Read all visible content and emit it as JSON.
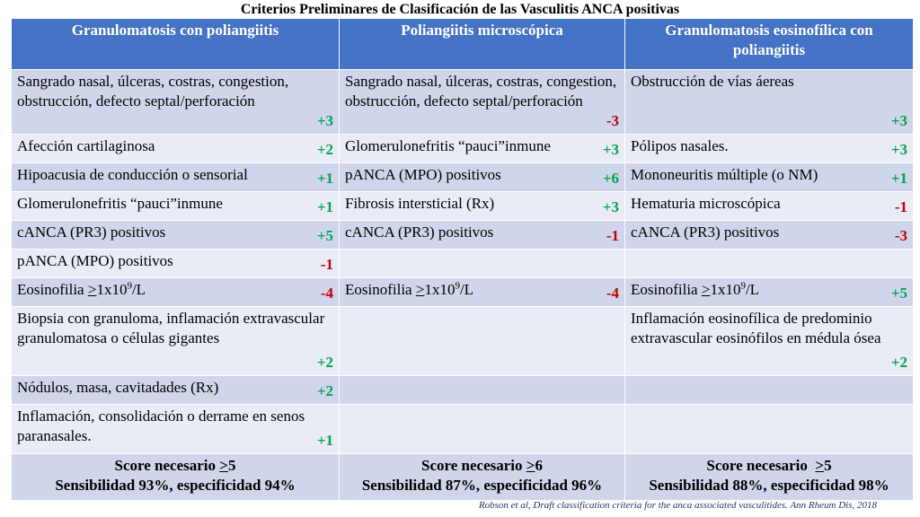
{
  "title": "Criterios Preliminares de Clasificación de las Vasculitis ANCA positivas",
  "headers": [
    "Granulomatosis con poliangiitis",
    "Poliangiitis microscópica",
    "Granulomatosis eosinofílica con poliangiitis"
  ],
  "rows": [
    [
      {
        "text": "Sangrado nasal, úlceras, costras, congestion, obstrucción, defecto septal/perforación",
        "score": "+3"
      },
      {
        "text": "Sangrado nasal, úlceras, costras, congestion, obstrucción, defecto septal/perforación",
        "score": "-3"
      },
      {
        "text": "Obstrucción de vías áereas",
        "score": "+3"
      }
    ],
    [
      {
        "text": "Afección cartilaginosa",
        "score": "+2"
      },
      {
        "text": "Glomerulonefritis “pauci”inmune",
        "score": "+3"
      },
      {
        "text": "Pólipos nasales.",
        "score": "+3"
      }
    ],
    [
      {
        "text": "Hipoacusia de conducción o sensorial",
        "score": "+1"
      },
      {
        "text": "pANCA (MPO) positivos",
        "score": "+6"
      },
      {
        "text": "Mononeuritis múltiple (o NM)",
        "score": "+1"
      }
    ],
    [
      {
        "text": "Glomerulonefritis “pauci”inmune",
        "score": "+1"
      },
      {
        "text": "Fibrosis intersticial (Rx)",
        "score": "+3"
      },
      {
        "text": "Hematuria microscópica",
        "score": "-1"
      }
    ],
    [
      {
        "text": "cANCA (PR3) positivos",
        "score": "+5"
      },
      {
        "text": "cANCA (PR3) positivos",
        "score": "-1"
      },
      {
        "text": "cANCA (PR3) positivos",
        "score": "-3"
      }
    ],
    [
      {
        "text": "pANCA (MPO) positivos",
        "score": "-1"
      },
      {
        "text": "",
        "score": ""
      },
      {
        "text": "",
        "score": ""
      }
    ],
    [
      {
        "pre": "Eosinofilia ",
        "ul": ">",
        "mid": "1x10",
        "sup": "9",
        "post": "/L",
        "score": "-4"
      },
      {
        "pre": "Eosinofilia ",
        "ul": ">",
        "mid": "1x10",
        "sup": "9",
        "post": "/L",
        "score": "-4"
      },
      {
        "pre": "Eosinofilia ",
        "ul": ">",
        "mid": "1x10",
        "sup": "9",
        "post": "/L",
        "score": "+5"
      }
    ],
    [
      {
        "text": "Biopsia con granuloma, inflamación extravascular granulomatosa o células gigantes",
        "score": "+2"
      },
      {
        "text": "",
        "score": ""
      },
      {
        "text": "Inflamación eosinofílica de predominio extravascular eosinófilos en médula ósea",
        "score": "+2"
      }
    ],
    [
      {
        "text": "Nódulos, masa, cavitadades (Rx)",
        "score": "+2"
      },
      {
        "text": "",
        "score": ""
      },
      {
        "text": "",
        "score": ""
      }
    ],
    [
      {
        "text": "Inflamación, consolidación o derrame en senos paranasales.",
        "score": "+1"
      },
      {
        "text": "",
        "score": ""
      },
      {
        "text": "",
        "score": ""
      }
    ]
  ],
  "summary": [
    {
      "score_pre": "Score necesario ",
      "score_ul": ">",
      "score_val": "5",
      "sens": "Sensibilidad 93%, especificidad 94%"
    },
    {
      "score_pre": "Score necesario ",
      "score_ul": ">",
      "score_val": "6",
      "sens": "Sensibilidad 87%, especificidad 96%"
    },
    {
      "score_pre": "Score necesario  ",
      "score_ul": ">",
      "score_val": "5",
      "sens": "Sensibilidad 88%, especificidad 98%"
    }
  ],
  "reference": "Robson et al, Draft classification criteria for the anca associated vasculitides. Ann Rheum Dis, 2018",
  "colors": {
    "header_bg": "#4472c4",
    "row_odd": "#cfd5ea",
    "row_even": "#e9ebf5",
    "positive": "#00a651",
    "negative": "#c00000"
  }
}
